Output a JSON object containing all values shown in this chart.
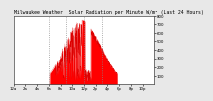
{
  "title": "Milwaukee Weather  Solar Radiation per Minute W/m² (Last 24 Hours)",
  "bg_color": "#e8e8e8",
  "plot_bg_color": "#ffffff",
  "fill_color": "#ff0000",
  "line_color": "#dd0000",
  "grid_color": "#888888",
  "ylim": [
    0,
    800
  ],
  "yticks": [
    100,
    200,
    300,
    400,
    500,
    600,
    700,
    800
  ],
  "num_points": 1440,
  "title_fontsize": 3.5,
  "tick_fontsize": 2.8,
  "num_dashed_vlines": 4
}
